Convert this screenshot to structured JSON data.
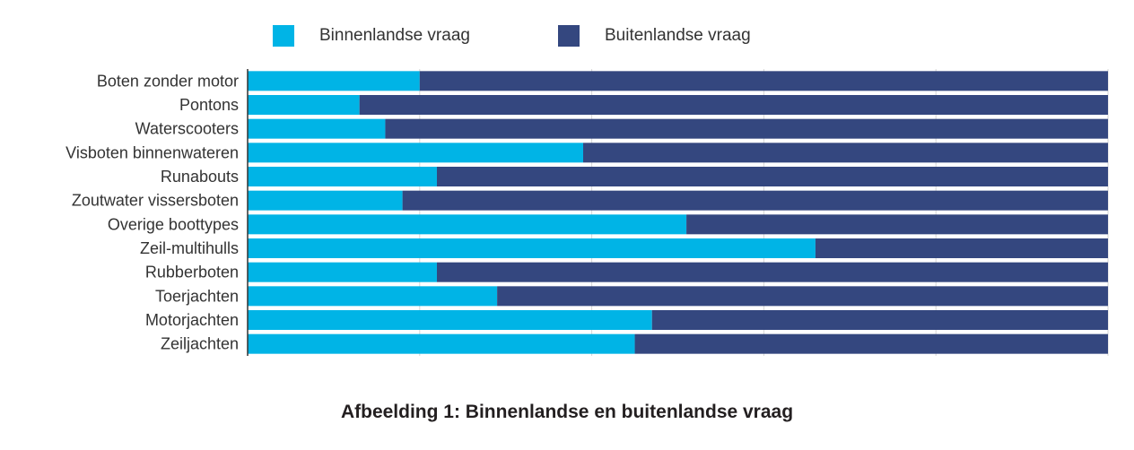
{
  "caption": "Afbeelding 1: Binnenlandse en buitenlandse vraag",
  "colors": {
    "domestic": "#00b4e6",
    "foreign": "#34477f",
    "grid": "#d6d6d6",
    "axis": "#333333"
  },
  "chart_data": {
    "type": "bar",
    "orientation": "horizontal",
    "stacked": true,
    "title": "",
    "xlabel": "",
    "ylabel": "",
    "xlim": [
      0,
      100
    ],
    "grid": true,
    "legend": "top",
    "categories": [
      "Boten zonder motor",
      "Pontons",
      "Waterscooters",
      "Visboten binnenwateren",
      "Runabouts",
      "Zoutwater vissersboten",
      "Overige boottypes",
      "Zeil-multihulls",
      "Rubberboten",
      "Toerjachten",
      "Motorjachten",
      "Zeiljachten"
    ],
    "series": [
      {
        "name": "Binnenlandse vraag",
        "color": "#00b4e6",
        "values": [
          20,
          13,
          16,
          39,
          22,
          18,
          51,
          66,
          22,
          29,
          47,
          45
        ]
      },
      {
        "name": "Buitenlandse vraag",
        "color": "#34477f",
        "values": [
          80,
          87,
          84,
          61,
          78,
          82,
          49,
          34,
          78,
          71,
          53,
          55
        ]
      }
    ]
  }
}
